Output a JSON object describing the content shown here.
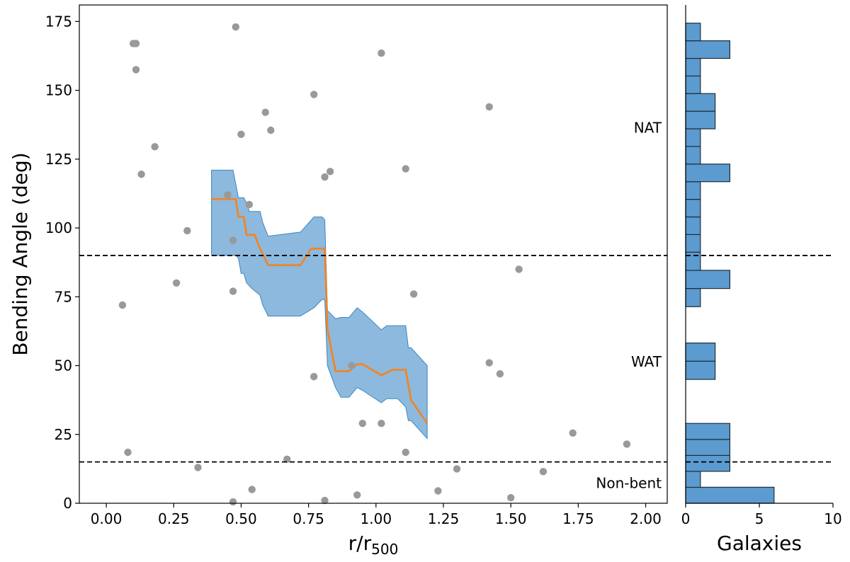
{
  "chart_data": [
    {
      "type": "scatter",
      "title": "",
      "xlabel_base": "r/r",
      "xlabel_sub": "500",
      "ylabel": "Bending Angle (deg)",
      "xlim": [
        -0.1,
        2.08
      ],
      "ylim": [
        0,
        181
      ],
      "xticks": [
        0.0,
        0.25,
        0.5,
        0.75,
        1.0,
        1.25,
        1.5,
        1.75,
        2.0
      ],
      "xtick_labels": [
        "0.00",
        "0.25",
        "0.50",
        "0.75",
        "1.00",
        "1.25",
        "1.50",
        "1.75",
        "2.00"
      ],
      "yticks": [
        0,
        25,
        50,
        75,
        100,
        125,
        150,
        175
      ],
      "ytick_labels": [
        "0",
        "25",
        "50",
        "75",
        "100",
        "125",
        "150",
        "175"
      ],
      "thresholds": [
        90,
        15
      ],
      "points": [
        [
          0.1,
          167
        ],
        [
          0.11,
          167
        ],
        [
          0.11,
          157.5
        ],
        [
          0.18,
          129.5
        ],
        [
          0.13,
          119.5
        ],
        [
          0.06,
          72
        ],
        [
          0.08,
          18.5
        ],
        [
          0.26,
          80
        ],
        [
          0.3,
          99
        ],
        [
          0.34,
          13
        ],
        [
          0.45,
          112
        ],
        [
          0.47,
          95.5
        ],
        [
          0.47,
          77
        ],
        [
          0.47,
          0.5
        ],
        [
          0.48,
          173
        ],
        [
          0.5,
          134
        ],
        [
          0.53,
          108.5
        ],
        [
          0.54,
          5
        ],
        [
          0.59,
          142
        ],
        [
          0.61,
          135.5
        ],
        [
          0.67,
          16
        ],
        [
          0.77,
          148.5
        ],
        [
          0.77,
          46
        ],
        [
          0.81,
          118.5
        ],
        [
          0.81,
          1
        ],
        [
          0.83,
          120.5
        ],
        [
          0.91,
          50
        ],
        [
          0.93,
          3
        ],
        [
          0.95,
          29
        ],
        [
          1.02,
          163.5
        ],
        [
          1.02,
          29
        ],
        [
          1.11,
          121.5
        ],
        [
          1.11,
          18.5
        ],
        [
          1.14,
          76
        ],
        [
          1.23,
          4.5
        ],
        [
          1.3,
          12.5
        ],
        [
          1.42,
          144
        ],
        [
          1.42,
          51
        ],
        [
          1.46,
          47
        ],
        [
          1.5,
          2
        ],
        [
          1.53,
          85
        ],
        [
          1.62,
          11.5
        ],
        [
          1.73,
          25.5
        ],
        [
          1.93,
          21.5
        ]
      ],
      "band": {
        "x": [
          0.39,
          0.47,
          0.48,
          0.49,
          0.5,
          0.51,
          0.52,
          0.53,
          0.54,
          0.57,
          0.58,
          0.6,
          0.72,
          0.77,
          0.8,
          0.81,
          0.82,
          0.85,
          0.87,
          0.9,
          0.93,
          0.95,
          1.02,
          1.04,
          1.08,
          1.11,
          1.12,
          1.13,
          1.19
        ],
        "upper": [
          121,
          121,
          116,
          111,
          111,
          111,
          109,
          106,
          106,
          106,
          102,
          97,
          98.5,
          104,
          104,
          103,
          70,
          67,
          67.5,
          67.5,
          71,
          69.5,
          63,
          64.5,
          64.5,
          64.5,
          56.5,
          56.5,
          50
        ],
        "lower": [
          90,
          90,
          90,
          89,
          83.5,
          83.5,
          80,
          79,
          78,
          75.5,
          72,
          68,
          68,
          71,
          74,
          74,
          50,
          42,
          38.5,
          38.5,
          42,
          41,
          36.5,
          38,
          38,
          35,
          30,
          30,
          23.5
        ]
      },
      "median": {
        "x": [
          0.39,
          0.47,
          0.48,
          0.49,
          0.51,
          0.52,
          0.53,
          0.55,
          0.57,
          0.6,
          0.72,
          0.76,
          0.78,
          0.81,
          0.82,
          0.85,
          0.87,
          0.9,
          0.93,
          0.95,
          1.02,
          1.06,
          1.11,
          1.12,
          1.13,
          1.19
        ],
        "y": [
          110.5,
          110.5,
          110.5,
          104,
          104,
          97.5,
          97.5,
          97.5,
          92.5,
          86.5,
          86.5,
          92.5,
          92.5,
          92.5,
          63,
          48,
          48,
          48,
          50.5,
          50.5,
          46.5,
          48.5,
          48.5,
          43,
          37.5,
          29
        ]
      }
    },
    {
      "type": "histogram",
      "orientation": "horizontal",
      "xlabel": "Galaxies",
      "xlim": [
        0,
        10
      ],
      "xticks": [
        0,
        5,
        10
      ],
      "xtick_labels": [
        "0",
        "5",
        "10"
      ],
      "ylim": [
        0,
        181
      ],
      "thresholds": [
        90,
        15
      ],
      "bins": [
        {
          "low": 0,
          "high": 5.8,
          "count": 6
        },
        {
          "low": 5.8,
          "high": 11.6,
          "count": 1
        },
        {
          "low": 11.6,
          "high": 17.4,
          "count": 3
        },
        {
          "low": 17.4,
          "high": 23.2,
          "count": 3
        },
        {
          "low": 23.2,
          "high": 29,
          "count": 3
        },
        {
          "low": 45,
          "high": 51.6,
          "count": 2
        },
        {
          "low": 51.6,
          "high": 58.2,
          "count": 2
        },
        {
          "low": 71.4,
          "high": 78,
          "count": 1
        },
        {
          "low": 78,
          "high": 84.6,
          "count": 3
        },
        {
          "low": 84.6,
          "high": 91.2,
          "count": 1
        },
        {
          "low": 91.2,
          "high": 97.6,
          "count": 1
        },
        {
          "low": 97.6,
          "high": 104,
          "count": 1
        },
        {
          "low": 104,
          "high": 110.4,
          "count": 1
        },
        {
          "low": 110.4,
          "high": 116.8,
          "count": 1
        },
        {
          "low": 116.8,
          "high": 123.2,
          "count": 3
        },
        {
          "low": 123.2,
          "high": 129.6,
          "count": 1
        },
        {
          "low": 129.6,
          "high": 136,
          "count": 1
        },
        {
          "low": 136,
          "high": 142.4,
          "count": 2
        },
        {
          "low": 142.4,
          "high": 148.8,
          "count": 2
        },
        {
          "low": 148.8,
          "high": 155.2,
          "count": 1
        },
        {
          "low": 155.2,
          "high": 161.6,
          "count": 1
        },
        {
          "low": 161.6,
          "high": 168,
          "count": 3
        },
        {
          "low": 168,
          "high": 174.4,
          "count": 1
        }
      ],
      "region_labels": [
        {
          "text": "NAT",
          "y": 136
        },
        {
          "text": "WAT",
          "y": 51
        },
        {
          "text": "Non-bent",
          "y": 7
        }
      ]
    }
  ],
  "colors": {
    "scatter": "#999999",
    "band_fill": "#5b9bcf",
    "band_edge": "#3f85c0",
    "median_line": "#f5821f",
    "hist_fill": "#5b9bcf",
    "hist_edge": "#1f2d3a",
    "threshold": "#000000"
  }
}
